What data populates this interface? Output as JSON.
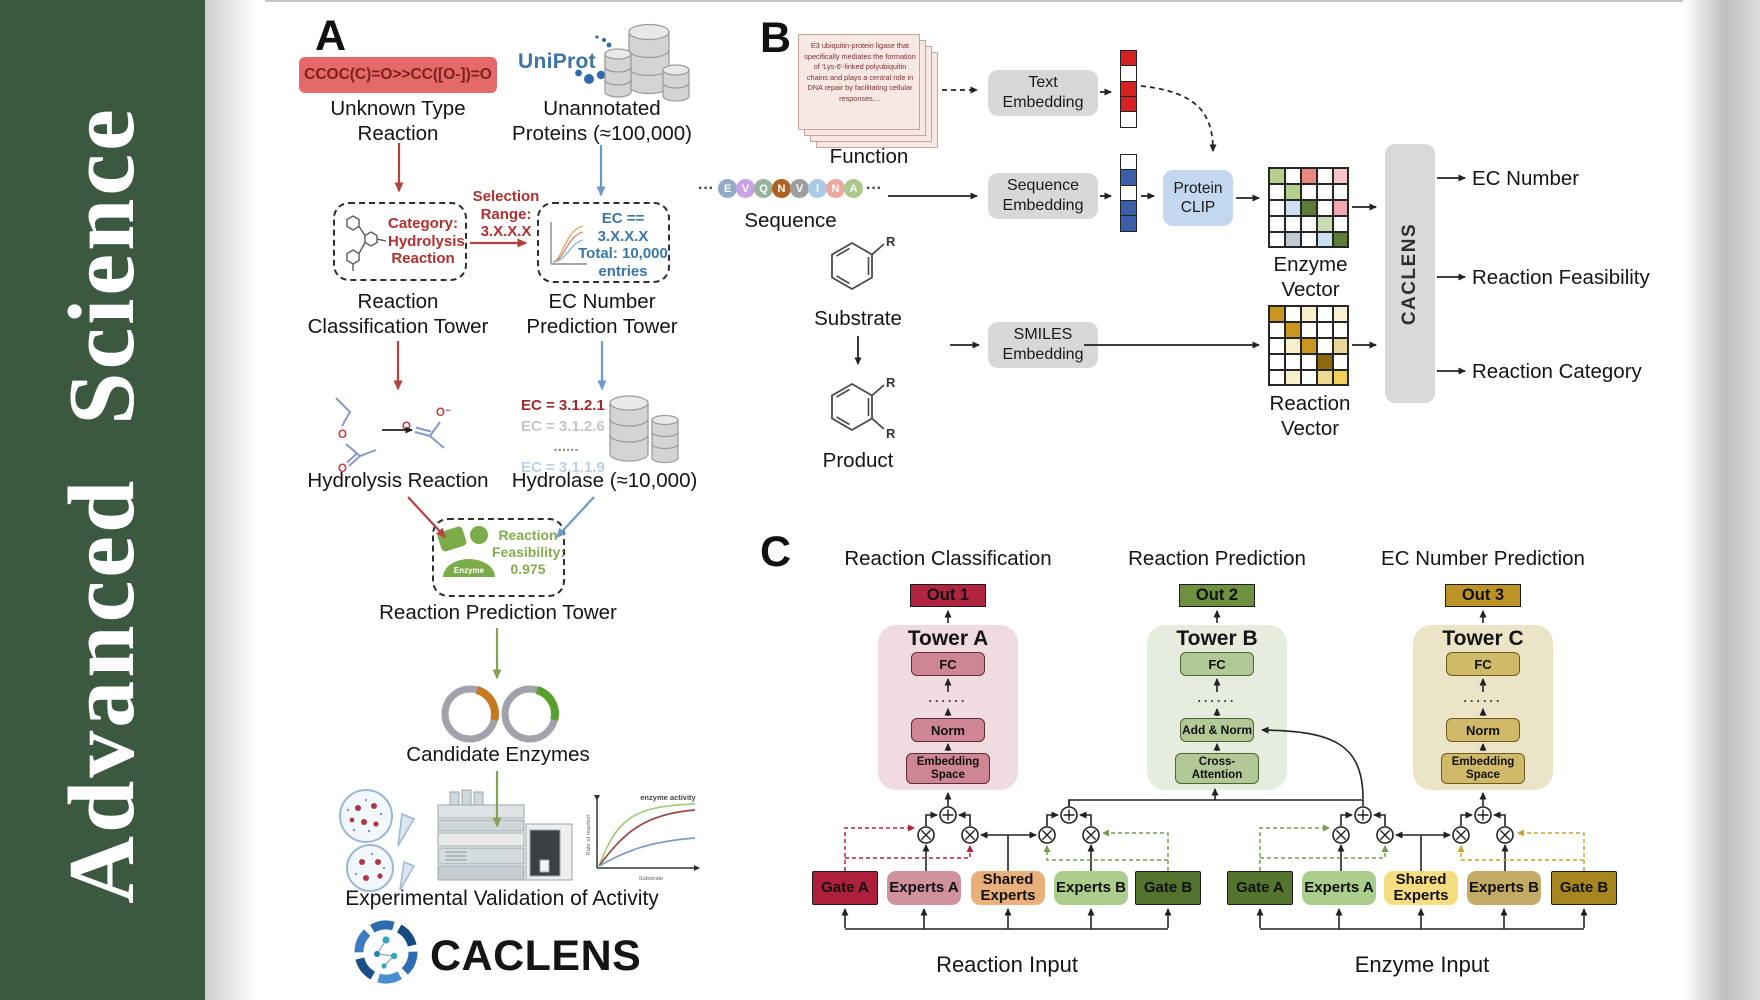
{
  "sidebar": {
    "brand": "Advanced  Science",
    "bg": "#3b5940"
  },
  "panelA": {
    "label": "A",
    "smiles": "CCOC(C)=O>>CC([O-])=O",
    "unknown_reaction": [
      "Unknown Type",
      "Reaction"
    ],
    "uniprot": "UniProt",
    "unannotated": [
      "Unannotated",
      "Proteins (≈100,000)"
    ],
    "category_box": [
      "Category:",
      "Hydrolysis",
      "Reaction"
    ],
    "selection": [
      "Selection",
      "Range:",
      "3.X.X.X"
    ],
    "ec_box": [
      "EC == 3.X.X.X",
      "Total: 10,000",
      "entries"
    ],
    "tower1": [
      "Reaction",
      "Classification Tower"
    ],
    "tower2": [
      "EC Number",
      "Prediction Tower"
    ],
    "hydrolysis": "Hydrolysis Reaction",
    "ec_list": [
      {
        "text": "EC = 3.1.2.1",
        "color": "#a3282c"
      },
      {
        "text": "EC = 3.1.2.6",
        "color": "#c6c6c6"
      },
      {
        "text": "......",
        "color": "#8f8f8f"
      },
      {
        "text": "EC = 3.1.1.9",
        "color": "#b9d0e6"
      }
    ],
    "hydrolase": "Hydrolase (≈10,000)",
    "enzyme": "Enzyme",
    "feasibility": [
      "Reaction",
      "Feasibility:",
      "0.975"
    ],
    "tower3": "Reaction Prediction Tower",
    "candidate": "Candidate Enzymes",
    "plot": {
      "title": "enzyme activity",
      "ylabel": "Rate of reaction",
      "xlabel": "Substrate"
    },
    "experimental": "Experimental Validation of Activity",
    "brand": "CACLENS"
  },
  "panelB": {
    "label": "B",
    "function_text": "E3 ubiquitin-protein ligase that specifically mediates the formation of 'Lys-6'-linked polyubiquitin chains and plays a central role in DNA repair by facilitating cellular responses....",
    "function": "Function",
    "dots_before": "···",
    "dots_after": "···",
    "sequence_label": "Sequence",
    "residues": [
      {
        "ch": "E",
        "bg": "#93aac6"
      },
      {
        "ch": "V",
        "bg": "#c9a3e3"
      },
      {
        "ch": "Q",
        "bg": "#97b39c"
      },
      {
        "ch": "N",
        "bg": "#b06020"
      },
      {
        "ch": "V",
        "bg": "#9e9e9e"
      },
      {
        "ch": "I",
        "bg": "#a9cbe8"
      },
      {
        "ch": "N",
        "bg": "#eda9a0"
      },
      {
        "ch": "A",
        "bg": "#abc98b"
      }
    ],
    "text_embedding": [
      "Text",
      "Embedding"
    ],
    "sequence_embedding": [
      "Sequence",
      "Embedding"
    ],
    "smiles_embedding": [
      "SMILES",
      "Embedding"
    ],
    "protein_clip": [
      "Protein",
      "CLIP"
    ],
    "substrate": "Substrate",
    "product": "Product",
    "r1": "R",
    "r2": "R",
    "r3": "R",
    "enzyme_vector_label": "Enzyme Vector",
    "reaction_vector_label": "Reaction Vector",
    "caclens": "CACLENS",
    "outputs": [
      "EC Number",
      "Reaction Feasibility",
      "Reaction Category"
    ],
    "text_vector": [
      "#d42222",
      "#ffffff",
      "#d42222",
      "#d42222",
      "#ffffff"
    ],
    "seq_vector": [
      "#ffffff",
      "#3a5fa8",
      "#ffffff",
      "#3a5fa8",
      "#3a5fa8"
    ],
    "enzyme_matrix": [
      [
        "#b7d28e",
        "#ffffff",
        "#e8887f",
        "#ffffff",
        "#f6c6cb"
      ],
      [
        "#ffffff",
        "#b7d28e",
        "#ffffff",
        "#ffffff",
        "#ffffff"
      ],
      [
        "#ffffff",
        "#cfdff2",
        "#5c7e39",
        "#ffffff",
        "#f2a9ae"
      ],
      [
        "#ffffff",
        "#ffffff",
        "#ffffff",
        "#c9ddb4",
        "#ffffff"
      ],
      [
        "#ffffff",
        "#bfcad3",
        "#ffffff",
        "#cfdff2",
        "#5c7e39"
      ]
    ],
    "reaction_matrix": [
      [
        "#c9961f",
        "#ffffff",
        "#f7efcc",
        "#ffffff",
        "#f9f1d4"
      ],
      [
        "#ffffff",
        "#c9961f",
        "#ffffff",
        "#ffffff",
        "#ffffff"
      ],
      [
        "#ffffff",
        "#f7efcc",
        "#c9961f",
        "#ffffff",
        "#ead69b"
      ],
      [
        "#ffffff",
        "#ffffff",
        "#ffffff",
        "#8a690f",
        "#ffffff"
      ],
      [
        "#ffffff",
        "#f7efcc",
        "#ffffff",
        "#eeda92",
        "#f0cf5c"
      ]
    ]
  },
  "panelC": {
    "label": "C",
    "columns": [
      {
        "title": "Reaction Classification",
        "out": "Out 1",
        "out_bg": "#b02440",
        "tower": "Tower A",
        "tower_bg": "#f0dbe0",
        "box_bg": "#ce8695",
        "box_border": "#5e2a35",
        "layers": [
          "FC",
          "······",
          "Norm",
          "Embedding Space"
        ]
      },
      {
        "title": "Reaction Prediction",
        "out": "Out 2",
        "out_bg": "#6e9140",
        "tower": "Tower B",
        "tower_bg": "#e6edde",
        "box_bg": "#b2c897",
        "box_border": "#4c6636",
        "layers": [
          "FC",
          "······",
          "Add & Norm",
          "Cross-Attention"
        ]
      },
      {
        "title": "EC Number Prediction",
        "out": "Out 3",
        "out_bg": "#bb9326",
        "tower": "Tower C",
        "tower_bg": "#ece4c6",
        "box_bg": "#d1b96a",
        "box_border": "#6e5a1e",
        "layers": [
          "FC",
          "······",
          "Norm",
          "Embedding Space"
        ]
      }
    ],
    "groups": [
      {
        "label": "Reaction Input",
        "boxes": [
          {
            "t": "Gate A",
            "bg": "#ad1f3b"
          },
          {
            "t": "Experts A",
            "bg": "#d1919f"
          },
          {
            "t": "Shared Experts",
            "bg": "#e9b07c"
          },
          {
            "t": "Experts B",
            "bg": "#abce8d"
          },
          {
            "t": "Gate B",
            "bg": "#53742f"
          }
        ]
      },
      {
        "label": "Enzyme Input",
        "boxes": [
          {
            "t": "Gate A",
            "bg": "#53742f"
          },
          {
            "t": "Experts A",
            "bg": "#abce8d"
          },
          {
            "t": "Shared Experts",
            "bg": "#f6dd7f"
          },
          {
            "t": "Experts B",
            "bg": "#c3ab66"
          },
          {
            "t": "Gate B",
            "bg": "#a8861f"
          }
        ]
      }
    ]
  }
}
